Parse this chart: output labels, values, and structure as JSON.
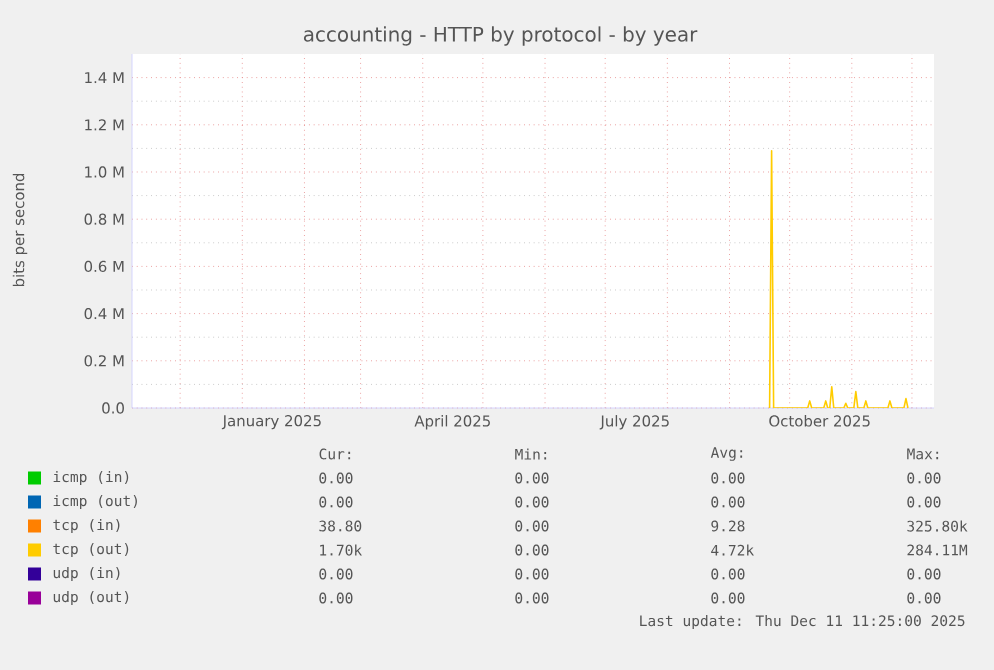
{
  "chart_data": {
    "type": "line",
    "title": "accounting - HTTP by protocol - by year",
    "ylabel": "bits per second",
    "xlim": [
      "2024-11-07",
      "2025-12-12"
    ],
    "xticks": [
      {
        "value": "2024-12-01",
        "label": null
      },
      {
        "value": "2025-01-01",
        "label": null
      },
      {
        "value": "2025-02-01",
        "label": null
      },
      {
        "value": "2025-03-01",
        "label": null
      },
      {
        "value": "2025-04-01",
        "label": null
      },
      {
        "value": "2025-05-01",
        "label": null
      },
      {
        "value": "2025-06-01",
        "label": null
      },
      {
        "value": "2025-07-01",
        "label": null
      },
      {
        "value": "2025-08-01",
        "label": null
      },
      {
        "value": "2025-09-01",
        "label": null
      },
      {
        "value": "2025-10-01",
        "label": null
      },
      {
        "value": "2025-11-01",
        "label": null
      },
      {
        "value": "2025-12-01",
        "label": null
      },
      {
        "value": "2025-01-16",
        "label": "January 2025"
      },
      {
        "value": "2025-04-16",
        "label": "April 2025"
      },
      {
        "value": "2025-07-16",
        "label": "July 2025"
      },
      {
        "value": "2025-10-16",
        "label": "October 2025"
      }
    ],
    "ylim": [
      0,
      1500000
    ],
    "yticks": [
      {
        "value": 0,
        "label": "0.0"
      },
      {
        "value": 200000,
        "label": "0.2 M"
      },
      {
        "value": 400000,
        "label": "0.4 M"
      },
      {
        "value": 600000,
        "label": "0.6 M"
      },
      {
        "value": 800000,
        "label": "0.8 M"
      },
      {
        "value": 1000000,
        "label": "1.0 M"
      },
      {
        "value": 1200000,
        "label": "1.2 M"
      },
      {
        "value": 1400000,
        "label": "1.4 M"
      }
    ],
    "grid": true,
    "legend": "bottom",
    "x": [
      "2025-09-21",
      "2025-09-22",
      "2025-09-23",
      "2025-10-10",
      "2025-10-11",
      "2025-10-12",
      "2025-10-18",
      "2025-10-19",
      "2025-10-20",
      "2025-10-21",
      "2025-10-22",
      "2025-10-23",
      "2025-10-28",
      "2025-10-29",
      "2025-10-30",
      "2025-11-02",
      "2025-11-03",
      "2025-11-04",
      "2025-11-07",
      "2025-11-08",
      "2025-11-09",
      "2025-11-19",
      "2025-11-20",
      "2025-11-21",
      "2025-11-27",
      "2025-11-28",
      "2025-11-29"
    ],
    "series": [
      {
        "name": "icmp (in)",
        "color": "#00cc00",
        "values": [
          null,
          null,
          null,
          null,
          null,
          null,
          null,
          null,
          null,
          null,
          null,
          null,
          null,
          null,
          null,
          null,
          null,
          null,
          null,
          null,
          null,
          null,
          null,
          null,
          null,
          null,
          null
        ]
      },
      {
        "name": "icmp (out)",
        "color": "#0066b3",
        "values": [
          null,
          null,
          null,
          null,
          null,
          null,
          null,
          null,
          null,
          null,
          null,
          null,
          null,
          null,
          null,
          null,
          null,
          null,
          null,
          null,
          null,
          null,
          null,
          null,
          null,
          null,
          null
        ]
      },
      {
        "name": "tcp (in)",
        "color": "#ff8000",
        "values": [
          null,
          null,
          null,
          null,
          null,
          null,
          null,
          null,
          null,
          null,
          null,
          null,
          null,
          null,
          null,
          null,
          null,
          null,
          null,
          null,
          null,
          null,
          null,
          null,
          null,
          null,
          null
        ]
      },
      {
        "name": "tcp (out)",
        "color": "#ffcc00",
        "values": [
          0,
          1090000,
          0,
          0,
          30000,
          0,
          0,
          30000,
          0,
          0,
          90000,
          0,
          0,
          20000,
          0,
          0,
          70000,
          0,
          0,
          30000,
          0,
          0,
          30000,
          0,
          0,
          40000,
          0
        ]
      },
      {
        "name": "udp (in)",
        "color": "#330099",
        "values": [
          null,
          null,
          null,
          null,
          null,
          null,
          null,
          null,
          null,
          null,
          null,
          null,
          null,
          null,
          null,
          null,
          null,
          null,
          null,
          null,
          null,
          null,
          null,
          null,
          null,
          null,
          null
        ]
      },
      {
        "name": "udp (out)",
        "color": "#990099",
        "values": [
          null,
          null,
          null,
          null,
          null,
          null,
          null,
          null,
          null,
          null,
          null,
          null,
          null,
          null,
          null,
          null,
          null,
          null,
          null,
          null,
          null,
          null,
          null,
          null,
          null,
          null,
          null
        ]
      }
    ],
    "annotations": [
      "Cur:",
      "Min:",
      "Avg:",
      "Max:",
      "0.00",
      "0.00",
      "0.00",
      "0.00",
      "0.00",
      "0.00",
      "0.00",
      "0.00",
      "38.80",
      "0.00",
      "9.28",
      "325.80k",
      "1.70k",
      "0.00",
      "4.72k",
      "284.11M",
      "0.00",
      "0.00",
      "0.00",
      "0.00",
      "0.00",
      "0.00",
      "0.00",
      "0.00",
      "Last update: Thu Dec 11 11:25:00 2025"
    ]
  }
}
